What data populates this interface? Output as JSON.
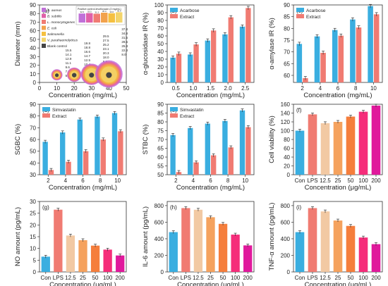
{
  "chart_data": [
    {
      "id": "a",
      "panel_label": "(a)",
      "type": "scatter",
      "xlabel": "Concentration (mg/mL)",
      "ylabel": "Diameter (mm)",
      "xlim": [
        0,
        50
      ],
      "ylim": [
        0,
        90
      ],
      "xticks": [
        "0",
        "10",
        "20",
        "30",
        "40",
        "50"
      ],
      "yticks": [
        "0",
        "10",
        "20",
        "30",
        "40",
        "50",
        "60",
        "70",
        "80",
        "90"
      ],
      "legend_title": "Positive control-levofloxacin (2 mg/mL)",
      "legend": [
        "S. aureus",
        "B. subtilis",
        "L. monocytogenes",
        "E. coli",
        "Salmonella",
        "V. parahaemolyticus",
        "Blank control"
      ],
      "colors": [
        "#c070d8",
        "#e060a8",
        "#f07b72",
        "#f2a24c",
        "#f5c040",
        "#f3d46a",
        "#444444"
      ],
      "series": [
        {
          "name": "S. aureus",
          "x": [
            10,
            20,
            30,
            40
          ],
          "y": [
            15.5,
            19.8,
            29.5,
            37.8
          ]
        },
        {
          "name": "B. subtilis",
          "x": [
            10,
            20,
            30,
            40
          ],
          "y": [
            14.1,
            18.8,
            27.5,
            34.8
          ]
        },
        {
          "name": "L. monocytogenes",
          "x": [
            10,
            20,
            30,
            40
          ],
          "y": [
            12.9,
            16.6,
            25.2,
            31.5
          ]
        },
        {
          "name": "E. coli",
          "x": [
            10,
            20,
            30,
            40
          ],
          "y": [
            11.1,
            14.7,
            23.1,
            28.5
          ]
        },
        {
          "name": "Salmonella",
          "x": [
            10,
            20,
            30,
            40
          ],
          "y": [
            9.6,
            12.5,
            20.3,
            25.3
          ]
        },
        {
          "name": "V. parahaemolyticus",
          "x": [
            10,
            20,
            30,
            40
          ],
          "y": [
            7.9,
            10.4,
            18.0,
            22.3
          ]
        },
        {
          "name": "Blank control",
          "x": [
            10,
            20,
            30,
            40
          ],
          "y": [
            5.1,
            6.2,
            6.8,
            8.0
          ]
        }
      ],
      "labels": [
        [
          "15.5",
          "14.1",
          "12.9",
          "11.1",
          "9.6",
          "7.9",
          "5.1"
        ],
        [
          "19.8",
          "18.8",
          "16.6",
          "14.7",
          "12.5",
          "10.4",
          "6.2"
        ],
        [
          "29.5",
          "27.5",
          "25.2",
          "23.1",
          "20.3",
          "18.0",
          "6.8"
        ],
        [
          "37.8",
          "34.8",
          "31.5",
          "28.5",
          "25.3",
          "22.3",
          "8.0"
        ]
      ],
      "positive_control_values": [
        32.0,
        33.5,
        31.2,
        35.0,
        33.0,
        36.5
      ]
    },
    {
      "id": "b",
      "panel_label": "(b)",
      "type": "bar",
      "xlabel": "Concentration (mg/mL)",
      "ylabel": "α-glucosidase IR (%)",
      "categories": [
        "0.5",
        "1.0",
        "1.5",
        "2.0",
        "2.5"
      ],
      "ylim": [
        0,
        100
      ],
      "yticks": [
        "0",
        "10",
        "20",
        "30",
        "40",
        "50",
        "60",
        "70",
        "80",
        "90",
        "100"
      ],
      "legend_position": "top-left",
      "series": [
        {
          "name": "Acarbose",
          "color": "#3aaee0",
          "values": [
            32,
            36,
            54,
            62,
            72
          ]
        },
        {
          "name": "Extract",
          "color": "#f07b72",
          "values": [
            37,
            49,
            67,
            84,
            96
          ]
        }
      ]
    },
    {
      "id": "c",
      "panel_label": "(c)",
      "type": "bar",
      "xlabel": "Concentration (mg/mL)",
      "ylabel": "α-amylase IR (%)",
      "categories": [
        "2",
        "4",
        "6",
        "8",
        "10"
      ],
      "ylim": [
        57,
        90
      ],
      "yticks": [
        "60",
        "65",
        "70",
        "75",
        "80",
        "85",
        "90"
      ],
      "legend_position": "top-left",
      "series": [
        {
          "name": "Acarbose",
          "color": "#3aaee0",
          "values": [
            73.4,
            76.6,
            79.3,
            83.8,
            89.5
          ]
        },
        {
          "name": "Extract",
          "color": "#f07b72",
          "values": [
            58.8,
            69.6,
            76.9,
            80.4,
            86.0
          ]
        }
      ]
    },
    {
      "id": "d",
      "panel_label": "(d)",
      "type": "bar",
      "xlabel": "Concentration (mg/mL)",
      "ylabel": "SGBC (%)",
      "categories": [
        "2",
        "4",
        "6",
        "8",
        "10"
      ],
      "ylim": [
        30,
        90
      ],
      "yticks": [
        "30",
        "40",
        "50",
        "60",
        "70",
        "80",
        "90"
      ],
      "legend_position": "top-left",
      "series": [
        {
          "name": "Simvastatin",
          "color": "#3aaee0",
          "values": [
            58,
            66,
            77,
            79.5,
            82.5
          ]
        },
        {
          "name": "Extract",
          "color": "#f07b72",
          "values": [
            34,
            41,
            50,
            60,
            67
          ]
        }
      ]
    },
    {
      "id": "e",
      "panel_label": "(e)",
      "type": "bar",
      "xlabel": "Concentration (mg/mL)",
      "ylabel": "STBC (%)",
      "categories": [
        "2",
        "4",
        "6",
        "8",
        "10"
      ],
      "ylim": [
        50,
        90
      ],
      "yticks": [
        "50",
        "55",
        "60",
        "65",
        "70",
        "75",
        "80",
        "85",
        "90"
      ],
      "legend_position": "top-left",
      "series": [
        {
          "name": "Simvastatin",
          "color": "#3aaee0",
          "values": [
            72.5,
            76.5,
            79,
            80.5,
            86.5
          ]
        },
        {
          "name": "Extract",
          "color": "#f07b72",
          "values": [
            51.5,
            57,
            61,
            65.5,
            77
          ]
        }
      ]
    },
    {
      "id": "f",
      "panel_label": "(f)",
      "type": "bar",
      "xlabel": "Concentration (μg/mL)",
      "ylabel": "Cell viability (%)",
      "categories": [
        "Con",
        "LPS",
        "12.5",
        "25",
        "50",
        "100",
        "200"
      ],
      "ylim": [
        0,
        160
      ],
      "yticks": [
        "0",
        "20",
        "40",
        "60",
        "80",
        "100",
        "120",
        "140",
        "160"
      ],
      "values": [
        100,
        137,
        117,
        120,
        132,
        143,
        157
      ],
      "colors": [
        "#3aaee0",
        "#f07b72",
        "#f2c9a3",
        "#f5a25e",
        "#f57e3c",
        "#f52d7a",
        "#e0199c"
      ]
    },
    {
      "id": "g",
      "panel_label": "(g)",
      "type": "bar",
      "xlabel": "Concentration (μg/mL)",
      "ylabel": "NO amount (pg/mL)",
      "categories": [
        "Con",
        "LPS",
        "12.5",
        "25",
        "50",
        "100",
        "200"
      ],
      "ylim": [
        0,
        30
      ],
      "yticks": [
        "0",
        "5",
        "10",
        "15",
        "20",
        "25",
        "30"
      ],
      "values": [
        6.5,
        26.5,
        15.5,
        13.5,
        11.2,
        9.5,
        7.0
      ],
      "colors": [
        "#3aaee0",
        "#f07b72",
        "#f2c9a3",
        "#f5a25e",
        "#f57e3c",
        "#f52d7a",
        "#e0199c"
      ]
    },
    {
      "id": "h",
      "panel_label": "(h)",
      "type": "bar",
      "xlabel": "Concentration (μg/mL)",
      "ylabel": "IL-6 amount (pg/mL)",
      "categories": [
        "Con",
        "LPS",
        "12.5",
        "25",
        "50",
        "100",
        "200"
      ],
      "ylim": [
        0,
        850
      ],
      "yticks": [
        "0",
        "200",
        "400",
        "600",
        "800"
      ],
      "values": [
        480,
        770,
        750,
        660,
        580,
        450,
        320
      ],
      "colors": [
        "#3aaee0",
        "#f07b72",
        "#f2c9a3",
        "#f5a25e",
        "#f57e3c",
        "#f52d7a",
        "#e0199c"
      ]
    },
    {
      "id": "i",
      "panel_label": "(i)",
      "type": "bar",
      "xlabel": "Concentration (μg/mL)",
      "ylabel": "TNF-α amount (pg/mL)",
      "categories": [
        "Con",
        "LPS",
        "12.5",
        "25",
        "50",
        "100",
        "200"
      ],
      "ylim": [
        0,
        850
      ],
      "yticks": [
        "0",
        "200",
        "400",
        "600",
        "800"
      ],
      "values": [
        480,
        770,
        730,
        620,
        555,
        415,
        335
      ],
      "colors": [
        "#3aaee0",
        "#f07b72",
        "#f2c9a3",
        "#f5a25e",
        "#f57e3c",
        "#f52d7a",
        "#e0199c"
      ]
    }
  ]
}
